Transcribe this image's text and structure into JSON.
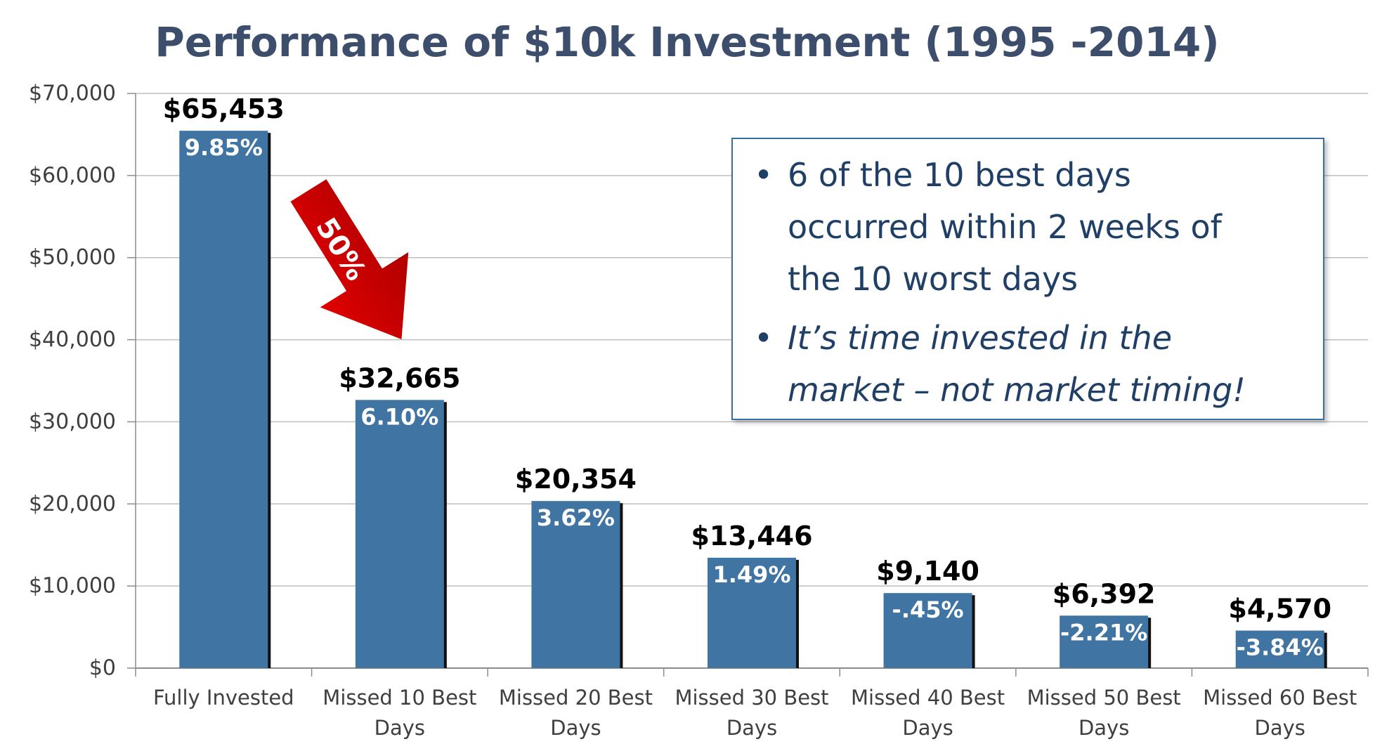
{
  "chart_data": {
    "type": "bar",
    "title": "Performance of $10k Investment (1995 -2014)",
    "categories": [
      "Fully Invested",
      "Missed 10 Best Days",
      "Missed 20 Best Days",
      "Missed 30 Best Days",
      "Missed 40 Best Days",
      "Missed 50 Best Days",
      "Missed 60 Best Days"
    ],
    "category_lines": [
      [
        "Fully Invested"
      ],
      [
        "Missed 10 Best",
        "Days"
      ],
      [
        "Missed 20 Best",
        "Days"
      ],
      [
        "Missed 30 Best",
        "Days"
      ],
      [
        "Missed 40 Best",
        "Days"
      ],
      [
        "Missed 50 Best",
        "Days"
      ],
      [
        "Missed 60 Best",
        "Days"
      ]
    ],
    "values": [
      65453,
      32665,
      20354,
      13446,
      9140,
      6392,
      4570
    ],
    "value_labels": [
      "$65,453",
      "$32,665",
      "$20,354",
      "$13,446",
      "$9,140",
      "$6,392",
      "$4,570"
    ],
    "return_labels": [
      "9.85%",
      "6.10%",
      "3.62%",
      "1.49%",
      "-.45%",
      "-2.21%",
      "-3.84%"
    ],
    "ylim": [
      0,
      70000
    ],
    "yticks": [
      0,
      10000,
      20000,
      30000,
      40000,
      50000,
      60000,
      70000
    ],
    "ytick_labels": [
      "$0",
      "$10,000",
      "$20,000",
      "$30,000",
      "$40,000",
      "$50,000",
      "$60,000",
      "$70,000"
    ],
    "grid": true,
    "bar_color": "#3f74a3",
    "annotation": {
      "text": "50%",
      "color": "#c00000"
    }
  },
  "callout": {
    "bullets": [
      {
        "text": "6 of the 10 best days occurred within 2 weeks of the 10 worst days",
        "lines": [
          "6 of the 10 best days",
          "occurred within 2 weeks of",
          "the 10 worst days"
        ],
        "italic": false
      },
      {
        "text": "It’s time invested in the market – not market timing!",
        "lines": [
          "It’s time invested in the",
          "market – not market timing!"
        ],
        "italic": true
      }
    ],
    "bullet_char": "•"
  }
}
